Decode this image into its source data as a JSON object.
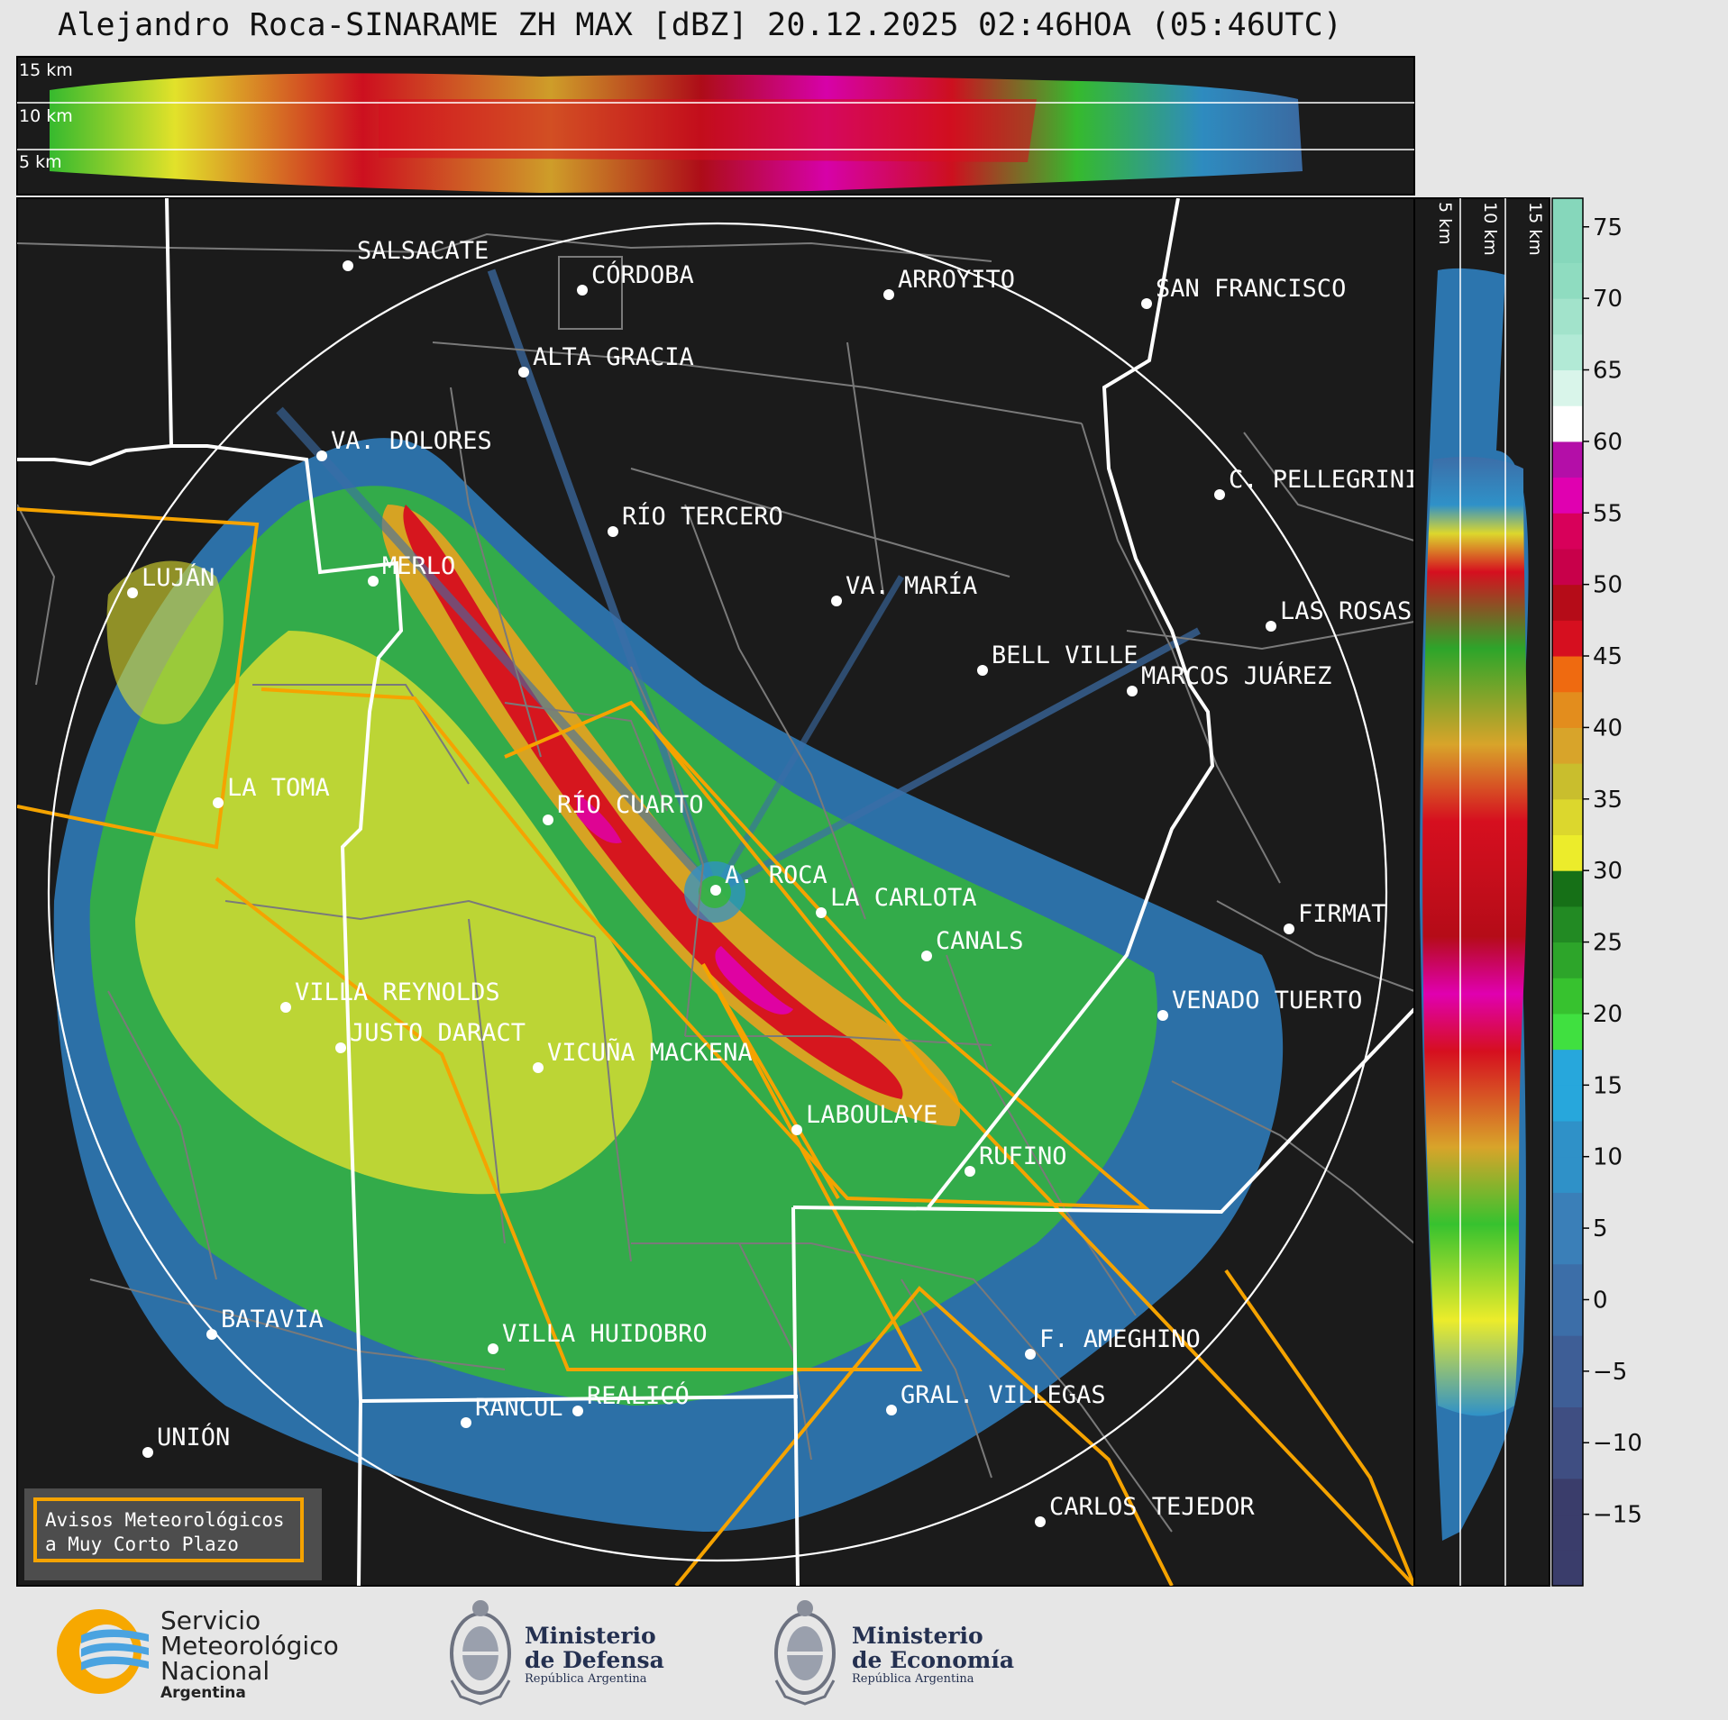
{
  "title": "Alejandro Roca-SINARAME ZH MAX [dBZ] 20.12.2025 02:46HOA (05:46UTC)",
  "top_profile": {
    "height_labels": [
      "15 km",
      "10 km",
      "5 km"
    ]
  },
  "side_profile": {
    "height_labels": [
      "5 km",
      "10 km",
      "15 km"
    ]
  },
  "colorbar": {
    "unit": "dBZ",
    "ticks": [
      "75",
      "70",
      "65",
      "60",
      "55",
      "50",
      "45",
      "40",
      "35",
      "30",
      "25",
      "20",
      "15",
      "10",
      "5",
      "0",
      "−5",
      "−10",
      "−15"
    ],
    "colors": [
      "#3a3d6b",
      "#3f4e82",
      "#3e5e96",
      "#3c6ea8",
      "#3a7fb8",
      "#2f91c8",
      "#27a7dc",
      "#40e040",
      "#37c22f",
      "#2da52a",
      "#228a23",
      "#167017",
      "#ecec2b",
      "#dcd72d",
      "#c9be2d",
      "#d8a42a",
      "#e38d1d",
      "#ef6a10",
      "#d60f1f",
      "#b50c18",
      "#8a0510",
      "#d8005a",
      "#e000b0",
      "#f020e8",
      "#b40ea8",
      "#ffffff",
      "#d9f5ea",
      "#b2ead6",
      "#8fdcc0"
    ]
  },
  "radar": {
    "site": "A. ROCA"
  },
  "cities": [
    {
      "name": "SALSACATE"
    },
    {
      "name": "CÓRDOBA"
    },
    {
      "name": "ARROYITO"
    },
    {
      "name": "SAN FRANCISCO"
    },
    {
      "name": "ALTA GRACIA"
    },
    {
      "name": "VA. DOLORES"
    },
    {
      "name": "C. PELLEGRINI"
    },
    {
      "name": "RÍO TERCERO"
    },
    {
      "name": "LUJÁN"
    },
    {
      "name": "MERLO"
    },
    {
      "name": "VA. MARÍA"
    },
    {
      "name": "LAS ROSAS"
    },
    {
      "name": "BELL VILLE"
    },
    {
      "name": "MARCOS JUÁREZ"
    },
    {
      "name": "LA TOMA"
    },
    {
      "name": "RÍO CUARTO"
    },
    {
      "name": "A. ROCA"
    },
    {
      "name": "LA CARLOTA"
    },
    {
      "name": "FIRMAT"
    },
    {
      "name": "CANALS"
    },
    {
      "name": "VILLA REYNOLDS"
    },
    {
      "name": "VENADO TUERTO"
    },
    {
      "name": "JUSTO DARACT"
    },
    {
      "name": "VICUÑA MACKENA"
    },
    {
      "name": "LABOULAYE"
    },
    {
      "name": "RUFINO"
    },
    {
      "name": "BATAVIA"
    },
    {
      "name": "VILLA HUIDOBRO"
    },
    {
      "name": "F. AMEGHINO"
    },
    {
      "name": "RANCUL"
    },
    {
      "name": "REALICÓ"
    },
    {
      "name": "GRAL. VILLEGAS"
    },
    {
      "name": "UNIÓN"
    },
    {
      "name": "CARLOS TEJEDOR"
    }
  ],
  "warning_box": {
    "line1": "Avisos Meteorológicos",
    "line2": "a Muy Corto Plazo"
  },
  "logos": {
    "smn": {
      "line1": "Servicio",
      "line2": "Meteorológico",
      "line3": "Nacional",
      "line4": "Argentina"
    },
    "defensa": {
      "line1": "Ministerio",
      "line2": "de Defensa",
      "line3": "República Argentina"
    },
    "economia": {
      "line1": "Ministerio",
      "line2": "de Economía",
      "line3": "República Argentina"
    }
  }
}
